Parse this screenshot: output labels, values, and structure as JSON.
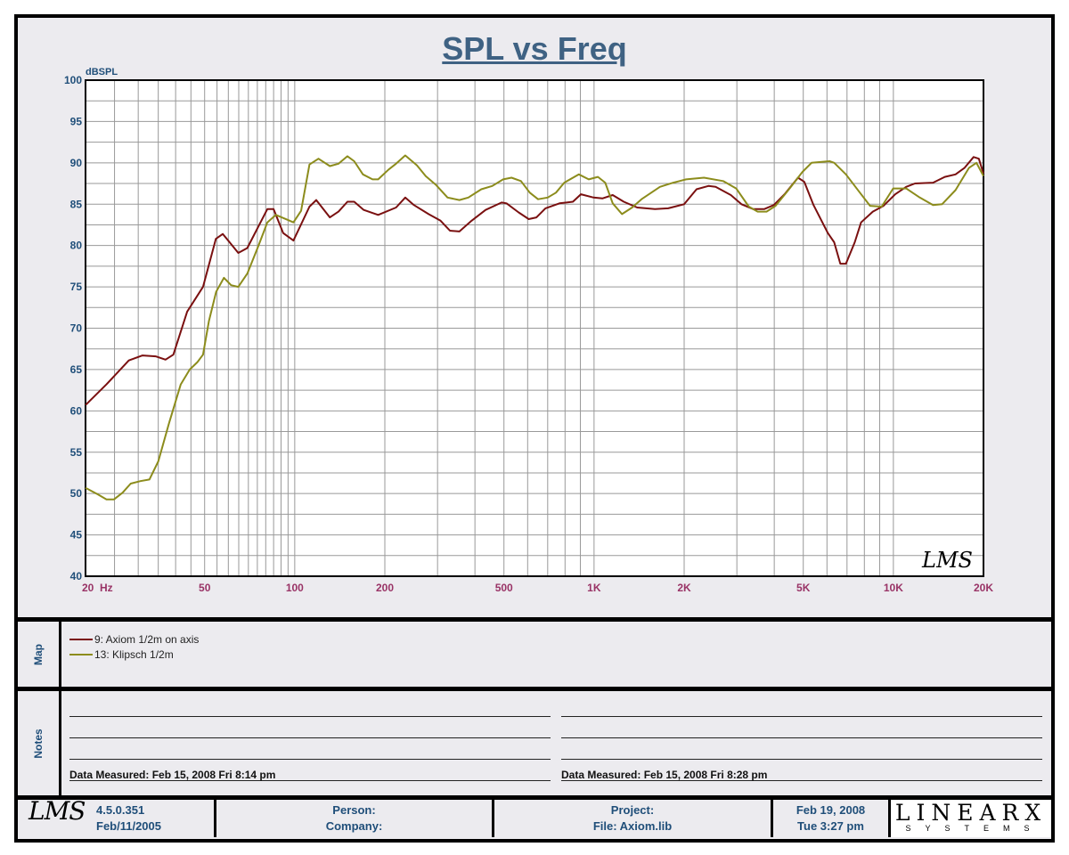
{
  "chart_data": {
    "type": "line",
    "title": "SPL vs Freq",
    "ylabel": "dBSPL",
    "xlabel": "Hz",
    "xscale": "log",
    "xlim": [
      20,
      20000
    ],
    "ylim": [
      40,
      100
    ],
    "grid": true,
    "yticks": [
      40,
      45,
      50,
      55,
      60,
      65,
      70,
      75,
      80,
      85,
      90,
      95,
      100
    ],
    "xticks": [
      {
        "value": 20,
        "label": "20  Hz"
      },
      {
        "value": 50,
        "label": "50"
      },
      {
        "value": 100,
        "label": "100"
      },
      {
        "value": 200,
        "label": "200"
      },
      {
        "value": 500,
        "label": "500"
      },
      {
        "value": 1000,
        "label": "1K"
      },
      {
        "value": 2000,
        "label": "2K"
      },
      {
        "value": 5000,
        "label": "5K"
      },
      {
        "value": 10000,
        "label": "10K"
      },
      {
        "value": 20000,
        "label": "20K"
      }
    ],
    "series": [
      {
        "name": "9: Axiom 1/2m on axis",
        "color": "#7a1010",
        "x": [
          20,
          23.5,
          27.9,
          31,
          34.3,
          37,
          39.3,
          43.7,
          49.4,
          54.5,
          57.5,
          64.8,
          69.4,
          81,
          85,
          91.5,
          99,
          112,
          118,
          131,
          140,
          150,
          158,
          170,
          190,
          218,
          234,
          250,
          280,
          307,
          330,
          355,
          387,
          434,
          491,
          510,
          560,
          605,
          642,
          688,
          767,
          850,
          904,
          996,
          1066,
          1154,
          1257,
          1394,
          1597,
          1769,
          2000,
          2200,
          2410,
          2547,
          2865,
          3108,
          3405,
          3700,
          3988,
          4330,
          4800,
          5040,
          5410,
          6040,
          6340,
          6650,
          6940,
          7430,
          7800,
          8540,
          9270,
          10150,
          11030,
          11810,
          13570,
          14850,
          16130,
          17290,
          18540,
          19300,
          20000
        ],
        "y": [
          60.7,
          63.2,
          66.1,
          66.7,
          66.6,
          66.2,
          66.8,
          72,
          75,
          80.8,
          81.4,
          79.1,
          79.7,
          84.4,
          84.4,
          81.5,
          80.6,
          84.7,
          85.5,
          83.4,
          84.1,
          85.3,
          85.3,
          84.3,
          83.7,
          84.6,
          85.8,
          84.9,
          83.8,
          83,
          81.8,
          81.7,
          82.9,
          84.3,
          85.2,
          85.1,
          84,
          83.2,
          83.4,
          84.5,
          85.1,
          85.3,
          86.2,
          85.8,
          85.7,
          86.1,
          85.3,
          84.6,
          84.4,
          84.5,
          85,
          86.8,
          87.2,
          87.1,
          86.1,
          85,
          84.4,
          84.4,
          84.9,
          86.2,
          88.2,
          87.7,
          84.9,
          81.5,
          80.4,
          77.8,
          77.8,
          80.4,
          82.8,
          84.1,
          84.8,
          86.2,
          87.1,
          87.5,
          87.6,
          88.3,
          88.6,
          89.4,
          90.7,
          90.5,
          88.7
        ]
      },
      {
        "name": "13: Klipsch 1/2m",
        "color": "#8c8c1c",
        "x": [
          20,
          22,
          23.5,
          24.9,
          26.6,
          28.3,
          30.5,
          32.7,
          35,
          38,
          41.6,
          44.6,
          47.3,
          49.4,
          51.7,
          54.6,
          58,
          61.3,
          64.8,
          69.4,
          75.7,
          81,
          86.5,
          94.8,
          99,
          105,
          112,
          120,
          131,
          140,
          150,
          158,
          169,
          182,
          190,
          206,
          218,
          234,
          256,
          274,
          297,
          324,
          355,
          380,
          420,
          457,
          497,
          530,
          570,
          610,
          650,
          700,
          746,
          795,
          890,
          960,
          1030,
          1090,
          1154,
          1240,
          1340,
          1440,
          1660,
          1840,
          2030,
          2330,
          2700,
          2985,
          3290,
          3520,
          3770,
          4040,
          4480,
          4970,
          5330,
          6120,
          6340,
          6940,
          7690,
          8360,
          9140,
          9980,
          11030,
          12250,
          13570,
          14540,
          16130,
          17900,
          18950,
          20000
        ],
        "y": [
          50.7,
          49.9,
          49.3,
          49.3,
          50.1,
          51.2,
          51.5,
          51.7,
          53.9,
          58.5,
          63.2,
          65,
          65.9,
          66.8,
          70.9,
          74.4,
          76.1,
          75.2,
          75,
          76.6,
          80,
          82.8,
          83.7,
          83.1,
          82.8,
          84.2,
          89.8,
          90.5,
          89.6,
          89.9,
          90.8,
          90.2,
          88.6,
          88,
          88,
          89.2,
          89.9,
          90.9,
          89.7,
          88.4,
          87.3,
          85.8,
          85.5,
          85.8,
          86.8,
          87.2,
          88,
          88.2,
          87.8,
          86.4,
          85.6,
          85.8,
          86.4,
          87.6,
          88.6,
          88,
          88.3,
          87.6,
          85.1,
          83.8,
          84.6,
          85.6,
          87.1,
          87.6,
          88,
          88.2,
          87.8,
          86.9,
          84.7,
          84.1,
          84.1,
          84.8,
          86.8,
          88.9,
          90,
          90.2,
          90,
          88.6,
          86.5,
          84.8,
          84.7,
          86.9,
          86.9,
          85.8,
          84.9,
          85,
          86.7,
          89.4,
          90,
          88.4
        ]
      }
    ],
    "watermark": "LMS"
  },
  "sections": {
    "map_label": "Map",
    "notes_label": "Notes"
  },
  "notes": {
    "left_measured": "Data Measured: Feb 15, 2008  Fri  8:14 pm",
    "right_measured": "Data Measured: Feb 15, 2008  Fri  8:28 pm"
  },
  "footer": {
    "logo": "LMS",
    "version": "4.5.0.351",
    "version_date": "Feb/11/2005",
    "person_label": "Person:",
    "company_label": "Company:",
    "project_label": "Project:",
    "file_label": "File: Axiom.lib",
    "date": "Feb 19, 2008",
    "time": "Tue  3:27 pm",
    "brand": "LINEARX",
    "brand_sub": "SYSTEMS"
  }
}
